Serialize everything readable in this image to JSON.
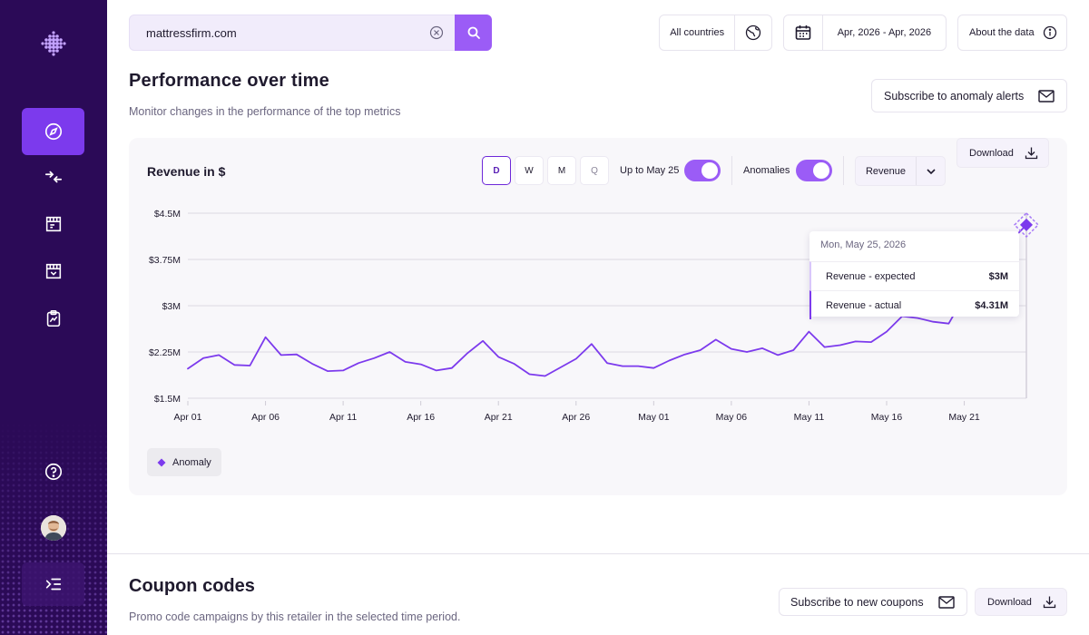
{
  "sidebar": {
    "nav": [
      {
        "icon": "compass-icon",
        "active": true
      },
      {
        "icon": "compare-arrows-icon",
        "active": false
      },
      {
        "icon": "storefront-icon",
        "active": false
      },
      {
        "icon": "store-report-icon",
        "active": false
      },
      {
        "icon": "clipboard-chart-icon",
        "active": false
      }
    ],
    "bottom": [
      "help-icon",
      "avatar",
      "collapse-menu-icon"
    ]
  },
  "search": {
    "value": "mattressfirm.com"
  },
  "filters": {
    "country": "All countries",
    "date_range": "Apr, 2026 - Apr, 2026",
    "about": "About the data"
  },
  "performance": {
    "title": "Performance over time",
    "subtitle": "Monitor changes in the performance of the top metrics",
    "subscribe_label": "Subscribe to anomaly alerts"
  },
  "chart_card": {
    "title": "Revenue in $",
    "granularity": [
      "D",
      "W",
      "M",
      "Q"
    ],
    "granularity_selected": "D",
    "up_to_label": "Up to May 25",
    "up_to_on": true,
    "anomalies_label": "Anomalies",
    "anomalies_on": true,
    "metric_select": "Revenue",
    "download_label": "Download",
    "legend_label": "Anomaly"
  },
  "tooltip": {
    "date": "Mon, May 25, 2026",
    "rows": [
      {
        "label": "Revenue - expected",
        "value": "$3M"
      },
      {
        "label": "Revenue - actual",
        "value": "$4.31M"
      }
    ]
  },
  "chart_data": {
    "type": "line",
    "title": "Revenue in $",
    "ylim": [
      1.5,
      4.5
    ],
    "yticks": [
      1.5,
      2.25,
      3,
      3.75,
      4.5
    ],
    "ytick_labels": [
      "$1.5M",
      "$2.25M",
      "$3M",
      "$3.75M",
      "$4.5M"
    ],
    "xtick_labels": [
      "Apr 01",
      "Apr 06",
      "Apr 11",
      "Apr 16",
      "Apr 21",
      "Apr 26",
      "May 01",
      "May 06",
      "May 11",
      "May 16",
      "May 21"
    ],
    "xtick_days": [
      1,
      6,
      11,
      16,
      21,
      26,
      31,
      36,
      41,
      46,
      51
    ],
    "days": [
      1,
      2,
      3,
      4,
      5,
      6,
      7,
      8,
      9,
      10,
      11,
      12,
      13,
      14,
      15,
      16,
      17,
      18,
      19,
      20,
      21,
      22,
      23,
      24,
      25,
      26,
      27,
      28,
      29,
      30,
      31,
      32,
      33,
      34,
      35,
      36,
      37,
      38,
      39,
      40,
      41,
      42,
      43,
      44,
      45,
      46,
      47,
      48,
      49,
      50,
      51,
      52,
      53,
      54,
      55
    ],
    "values": [
      1.98,
      2.15,
      2.2,
      2.04,
      2.03,
      2.49,
      2.2,
      2.21,
      2.06,
      1.94,
      1.95,
      2.07,
      2.15,
      2.25,
      2.09,
      2.05,
      1.95,
      1.99,
      2.23,
      2.43,
      2.17,
      2.06,
      1.89,
      1.86,
      2.0,
      2.14,
      2.38,
      2.07,
      2.02,
      2.02,
      1.99,
      2.11,
      2.21,
      2.28,
      2.45,
      2.3,
      2.25,
      2.31,
      2.2,
      2.28,
      2.58,
      2.33,
      2.36,
      2.42,
      2.41,
      2.58,
      2.83,
      2.8,
      2.74,
      2.71,
      3.15,
      3.85,
      3.95,
      4.05,
      4.31
    ],
    "series": [
      {
        "name": "Revenue - actual"
      }
    ],
    "anomaly_days": [
      55
    ],
    "grid": true,
    "legend": "bottom-left"
  },
  "coupons": {
    "title": "Coupon codes",
    "subtitle": "Promo code campaigns by this retailer in the selected time period.",
    "subscribe_label": "Subscribe to new coupons",
    "download_label": "Download"
  },
  "colors": {
    "sidebar": "#2b0a57",
    "accent": "#7c3aed",
    "line": "#7c3aed",
    "toggle": "#9b5cf6"
  }
}
